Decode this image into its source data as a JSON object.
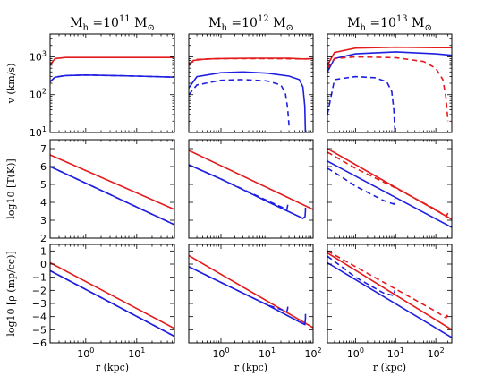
{
  "colors": {
    "red": "#e41a1c",
    "blue": "#1f1fe0"
  },
  "col_titles": [
    "M$_h$ =10$^{11}$ M$_\\odot$",
    "M$_h$ =10$^{12}$ M$_\\odot$",
    "M$_h$ =10$^{13}$ M$_\\odot$"
  ],
  "col_titles_display": [
    "M_h =10^11 M_⊙",
    "M_h =10^12 M_⊙",
    "M_h =10^13 M_⊙"
  ],
  "row_labels": [
    "v (km/s)",
    "log10 [T(K)]",
    "log10 [ρ (mp/cc)]"
  ],
  "xlabel": "r (kpc)",
  "chart_data": [
    {
      "type": "line",
      "panel": "v, 1e11",
      "xscale": "log",
      "yscale": "log",
      "xlim": [
        0.2,
        55
      ],
      "ylim": [
        10,
        4000
      ],
      "series": [
        {
          "color": "red",
          "style": "solid",
          "x": [
            0.2,
            0.25,
            0.4,
            1,
            10,
            55
          ],
          "y": [
            600,
            900,
            960,
            960,
            960,
            960
          ]
        },
        {
          "color": "blue",
          "style": "solid",
          "x": [
            0.2,
            0.25,
            0.4,
            1,
            10,
            55
          ],
          "y": [
            220,
            290,
            320,
            330,
            310,
            290
          ]
        },
        {
          "color": "blue",
          "style": "dashed",
          "x": [
            0.2,
            0.25,
            0.4,
            1,
            10,
            55
          ],
          "y": [
            220,
            290,
            320,
            330,
            310,
            290
          ]
        }
      ]
    },
    {
      "type": "line",
      "panel": "v, 1e12",
      "xscale": "log",
      "yscale": "log",
      "xlim": [
        0.2,
        100
      ],
      "ylim": [
        10,
        4000
      ],
      "series": [
        {
          "color": "red",
          "style": "solid",
          "x": [
            0.2,
            0.25,
            0.5,
            1,
            5,
            30,
            60,
            100
          ],
          "y": [
            600,
            800,
            880,
            900,
            920,
            920,
            880,
            900
          ]
        },
        {
          "color": "blue",
          "style": "solid",
          "x": [
            0.2,
            0.3,
            1,
            3,
            10,
            30,
            50,
            60,
            66,
            68
          ],
          "y": [
            150,
            300,
            380,
            400,
            370,
            310,
            250,
            160,
            50,
            10
          ]
        },
        {
          "color": "blue",
          "style": "dashed",
          "x": [
            0.2,
            0.3,
            1,
            3,
            10,
            20,
            25,
            28,
            30
          ],
          "y": [
            100,
            180,
            240,
            250,
            230,
            180,
            110,
            45,
            15
          ]
        },
        {
          "color": "red",
          "style": "dashed",
          "x": [
            0.2,
            0.3,
            1,
            10,
            50,
            100
          ],
          "y": [
            650,
            850,
            900,
            900,
            880,
            880
          ]
        }
      ]
    },
    {
      "type": "line",
      "panel": "v, 1e13",
      "xscale": "log",
      "yscale": "log",
      "xlim": [
        0.2,
        250
      ],
      "ylim": [
        10,
        4000
      ],
      "series": [
        {
          "color": "red",
          "style": "solid",
          "x": [
            0.2,
            0.3,
            1,
            10,
            100,
            250
          ],
          "y": [
            600,
            1300,
            1700,
            1800,
            1750,
            1750
          ]
        },
        {
          "color": "blue",
          "style": "solid",
          "x": [
            0.2,
            0.3,
            1,
            10,
            100,
            250
          ],
          "y": [
            400,
            900,
            1200,
            1350,
            1200,
            1100
          ]
        },
        {
          "color": "red",
          "style": "dashed",
          "x": [
            0.2,
            0.3,
            1,
            10,
            50,
            100,
            150,
            180,
            200
          ],
          "y": [
            500,
            900,
            1000,
            950,
            750,
            500,
            250,
            80,
            20
          ]
        },
        {
          "color": "blue",
          "style": "dashed",
          "x": [
            0.2,
            0.3,
            1,
            3,
            6,
            8,
            9,
            9.5
          ],
          "y": [
            30,
            250,
            300,
            280,
            220,
            120,
            40,
            12
          ]
        }
      ]
    },
    {
      "type": "line",
      "panel": "T, 1e11",
      "xscale": "log",
      "xlim": [
        0.2,
        55
      ],
      "ylim": [
        2,
        7.5
      ],
      "series": [
        {
          "color": "red",
          "style": "solid",
          "x": [
            0.2,
            55
          ],
          "y": [
            6.65,
            3.6
          ]
        },
        {
          "color": "blue",
          "style": "solid",
          "x": [
            0.2,
            55
          ],
          "y": [
            6.0,
            2.75
          ]
        },
        {
          "color": "blue",
          "style": "dashed",
          "x": [
            0.2,
            55
          ],
          "y": [
            6.0,
            2.75
          ]
        }
      ]
    },
    {
      "type": "line",
      "panel": "T, 1e12",
      "xscale": "log",
      "xlim": [
        0.2,
        100
      ],
      "ylim": [
        2,
        7.5
      ],
      "series": [
        {
          "color": "red",
          "style": "solid",
          "x": [
            0.2,
            100
          ],
          "y": [
            6.9,
            3.6
          ]
        },
        {
          "color": "blue",
          "style": "solid",
          "x": [
            0.2,
            1,
            10,
            50,
            60,
            67,
            68,
            68.5
          ],
          "y": [
            6.1,
            5.3,
            4.05,
            3.2,
            3.1,
            3.2,
            3.5,
            3.7
          ]
        },
        {
          "color": "blue",
          "style": "dashed",
          "x": [
            0.2,
            1,
            10,
            27,
            28,
            28.5
          ],
          "y": [
            6.1,
            5.3,
            4.1,
            3.6,
            3.8,
            4.0
          ]
        }
      ]
    },
    {
      "type": "line",
      "panel": "T, 1e13",
      "xscale": "log",
      "xlim": [
        0.2,
        250
      ],
      "ylim": [
        2,
        7.5
      ],
      "series": [
        {
          "color": "red",
          "style": "solid",
          "x": [
            0.2,
            250
          ],
          "y": [
            7.0,
            3.05
          ]
        },
        {
          "color": "blue",
          "style": "solid",
          "x": [
            0.2,
            250
          ],
          "y": [
            6.3,
            2.6
          ]
        },
        {
          "color": "red",
          "style": "dashed",
          "x": [
            0.2,
            1,
            10,
            100,
            180,
            200
          ],
          "y": [
            6.8,
            5.9,
            4.8,
            3.6,
            3.2,
            3.4
          ]
        },
        {
          "color": "blue",
          "style": "dashed",
          "x": [
            0.2,
            0.4,
            1,
            5,
            9,
            9.5
          ],
          "y": [
            5.9,
            5.5,
            4.9,
            4.1,
            3.9,
            4.2
          ]
        }
      ]
    },
    {
      "type": "line",
      "panel": "rho, 1e11",
      "xscale": "log",
      "xlim": [
        0.2,
        55
      ],
      "ylim": [
        -6,
        1.5
      ],
      "series": [
        {
          "color": "red",
          "style": "solid",
          "x": [
            0.2,
            55
          ],
          "y": [
            0.1,
            -4.9
          ]
        },
        {
          "color": "blue",
          "style": "solid",
          "x": [
            0.2,
            55
          ],
          "y": [
            -0.5,
            -5.5
          ]
        },
        {
          "color": "blue",
          "style": "dashed",
          "x": [
            0.2,
            55
          ],
          "y": [
            -0.5,
            -5.5
          ]
        }
      ]
    },
    {
      "type": "line",
      "panel": "rho, 1e12",
      "xscale": "log",
      "xlim": [
        0.2,
        100
      ],
      "ylim": [
        -6,
        1.5
      ],
      "series": [
        {
          "color": "red",
          "style": "solid",
          "x": [
            0.2,
            100
          ],
          "y": [
            0.65,
            -4.85
          ]
        },
        {
          "color": "blue",
          "style": "solid",
          "x": [
            0.2,
            1,
            10,
            50,
            66,
            68,
            68.5
          ],
          "y": [
            -0.2,
            -1.4,
            -3.1,
            -4.4,
            -4.6,
            -4.2,
            -3.8
          ]
        },
        {
          "color": "blue",
          "style": "dashed",
          "x": [
            0.2,
            1,
            10,
            27,
            28,
            28.5
          ],
          "y": [
            -0.2,
            -1.4,
            -3.1,
            -3.6,
            -3.4,
            -3.1
          ]
        }
      ]
    },
    {
      "type": "line",
      "panel": "rho, 1e13",
      "xscale": "log",
      "xlim": [
        0.2,
        250
      ],
      "ylim": [
        -6,
        1.5
      ],
      "series": [
        {
          "color": "red",
          "style": "solid",
          "x": [
            0.2,
            250
          ],
          "y": [
            0.85,
            -5.0
          ]
        },
        {
          "color": "blue",
          "style": "solid",
          "x": [
            0.2,
            250
          ],
          "y": [
            0.1,
            -5.6
          ]
        },
        {
          "color": "red",
          "style": "dashed",
          "x": [
            0.2,
            1,
            10,
            100,
            180,
            200
          ],
          "y": [
            1.0,
            -0.2,
            -1.9,
            -3.6,
            -4.1,
            -3.8
          ]
        },
        {
          "color": "blue",
          "style": "dashed",
          "x": [
            0.2,
            0.5,
            1,
            5,
            9,
            9.5
          ],
          "y": [
            0.6,
            -0.3,
            -1.0,
            -2.2,
            -2.4,
            -2.0
          ]
        }
      ]
    }
  ]
}
